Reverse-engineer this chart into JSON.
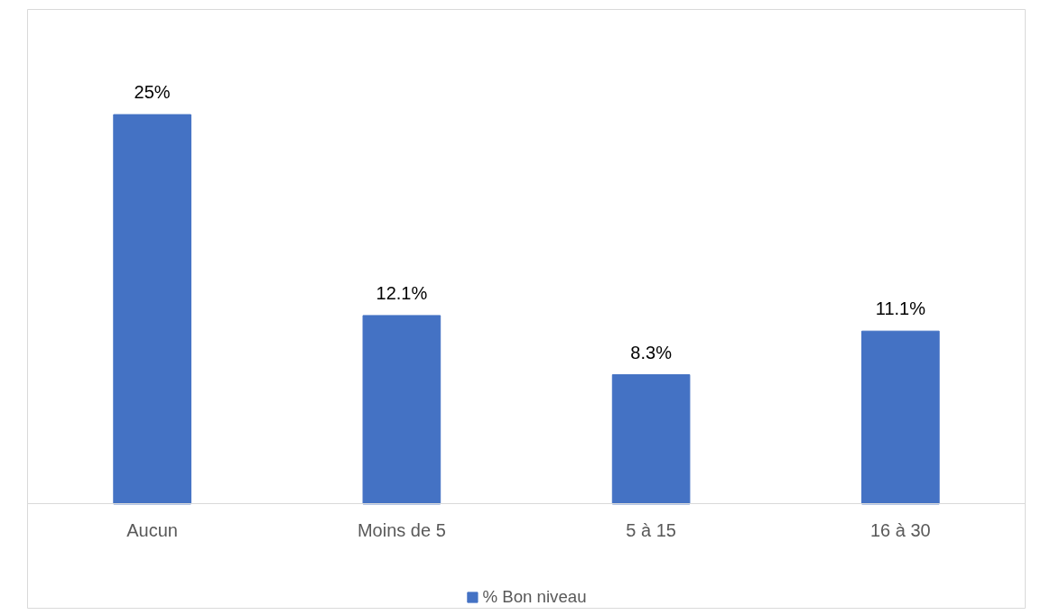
{
  "chart_data": {
    "type": "bar",
    "categories": [
      "Aucun",
      "Moins de 5",
      "5 à 15",
      "16 à 30"
    ],
    "series": [
      {
        "name": "% Bon niveau",
        "color": "#4472c4",
        "values": [
          25,
          12.1,
          8.3,
          11.1
        ],
        "value_labels": [
          "25%",
          "12.1%",
          "8.3%",
          "11.1%"
        ]
      }
    ],
    "legend": "bottom",
    "grid": false
  }
}
